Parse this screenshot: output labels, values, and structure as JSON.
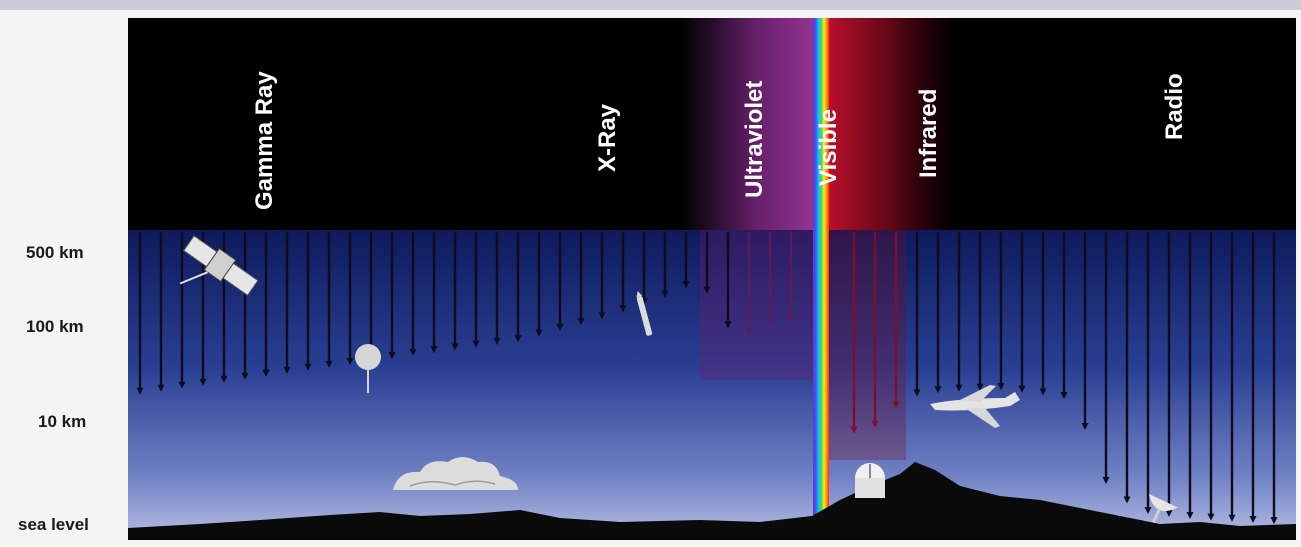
{
  "bands": [
    {
      "label": "Gamma Ray"
    },
    {
      "label": "X-Ray"
    },
    {
      "label": "Ultraviolet"
    },
    {
      "label": "Visible"
    },
    {
      "label": "Infrared"
    },
    {
      "label": "Radio"
    }
  ],
  "altitudes": [
    {
      "label": "500 km"
    },
    {
      "label": "100 km"
    },
    {
      "label": "10 km"
    },
    {
      "label": "sea level"
    }
  ],
  "colors": {
    "space": "#000000",
    "ultraviolet_glow": "#8a2a8e",
    "infrared_glow": "#b0102a",
    "sky_top": "#0e1a5c",
    "sky_bottom": "#a6b0dc",
    "ground": "#0a0a0a",
    "arrow_dark": "#0c0c1e",
    "arrow_red": "#7a1030"
  },
  "icons": [
    "satellite-icon",
    "balloon-icon",
    "rocket-icon",
    "airplane-icon",
    "cloud-icon",
    "observatory-icon",
    "radio-dish-icon"
  ]
}
